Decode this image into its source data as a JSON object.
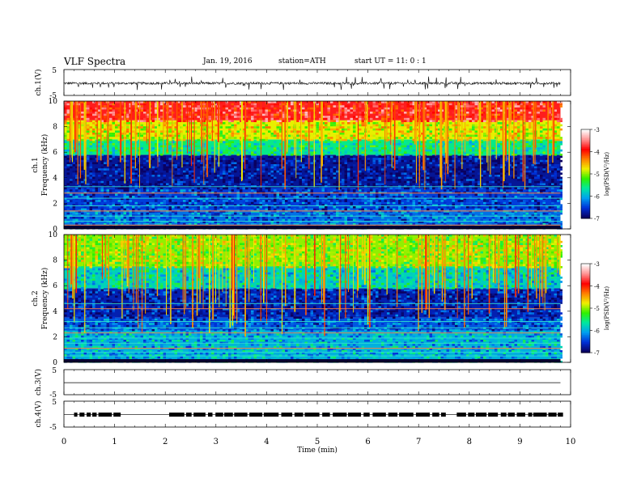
{
  "header": {
    "title": "VLF Spectra",
    "date": "Jan. 19, 2016",
    "station": "station=ATH",
    "start": "start  UT  =   11: 0  : 1"
  },
  "chart_data": [
    {
      "type": "line",
      "panel": "ch1-waveform",
      "ylabel": "ch.1(V)",
      "yticks": [
        "5",
        "-5"
      ],
      "ylim": [
        -5,
        5
      ],
      "baseline": -0.3,
      "description_of_values": "noisy trace around -0.3 V with spikes to about -2.5 V"
    },
    {
      "type": "heatmap",
      "panel": "ch1-spectrogram",
      "ylabel": "ch.1\nFrequency  (kHz)",
      "yticks": [
        "0",
        "2",
        "4",
        "6",
        "8",
        "10"
      ],
      "ylim": [
        0,
        10
      ],
      "colorbar": {
        "label": "log(PSD(V²/Hz)",
        "ticks": [
          "-3",
          "-4",
          "-5",
          "-6",
          "-7"
        ],
        "range": [
          -7,
          -3
        ]
      },
      "bands_khz": [
        {
          "from": 0,
          "to": 1.5,
          "level": -6.3
        },
        {
          "from": 1.5,
          "to": 3.2,
          "level": -6.5
        },
        {
          "from": 3.2,
          "to": 5.8,
          "level": -6.8
        },
        {
          "from": 5.8,
          "to": 7.0,
          "level": -5.6
        },
        {
          "from": 7.0,
          "to": 8.5,
          "level": -4.8
        },
        {
          "from": 8.5,
          "to": 10,
          "level": -3.8
        }
      ]
    },
    {
      "type": "heatmap",
      "panel": "ch2-spectrogram",
      "ylabel": "ch.2\nFrequency  (kHz)",
      "yticks": [
        "0",
        "2",
        "4",
        "6",
        "8",
        "10"
      ],
      "ylim": [
        0,
        10
      ],
      "colorbar": {
        "label": "log(PSD(V²/Hz)",
        "ticks": [
          "-3",
          "-4",
          "-5",
          "-6",
          "-7"
        ],
        "range": [
          -7,
          -3
        ]
      },
      "bands_khz": [
        {
          "from": 0,
          "to": 2.5,
          "level": -6.0
        },
        {
          "from": 2.5,
          "to": 3.5,
          "level": -6.4
        },
        {
          "from": 3.5,
          "to": 5.8,
          "level": -6.7
        },
        {
          "from": 5.8,
          "to": 7.5,
          "level": -5.8
        },
        {
          "from": 7.5,
          "to": 10,
          "level": -5.0
        }
      ]
    },
    {
      "type": "line",
      "panel": "ch3-waveform",
      "ylabel": "ch.3(V)",
      "yticks": [
        "5",
        "-5"
      ],
      "ylim": [
        -5,
        5
      ],
      "baseline": -0.2
    },
    {
      "type": "line",
      "panel": "ch4-waveform",
      "ylabel": "ch.4(V)",
      "yticks": [
        "5",
        "-5"
      ],
      "ylim": [
        -5,
        5
      ],
      "baseline": -0.2,
      "gaps_min": [
        [
          1.0,
          1.8
        ],
        [
          2.3,
          2.4
        ],
        [
          4.3,
          4.55
        ],
        [
          6.45,
          6.55
        ],
        [
          7.5,
          7.65
        ],
        [
          9.05,
          9.1
        ]
      ]
    }
  ],
  "x_axis": {
    "xlabel": "Time  (min)",
    "xlim": [
      0,
      10
    ],
    "data_end": 9.8,
    "ticks": [
      "0",
      "1",
      "2",
      "3",
      "4",
      "5",
      "6",
      "7",
      "8",
      "9",
      "10"
    ]
  },
  "colors": {
    "colormap": [
      "#0a0060",
      "#0030d8",
      "#00a0f0",
      "#00e8a0",
      "#30f000",
      "#f0f000",
      "#ff8000",
      "#ff0000",
      "#ff9090",
      "#ffffff"
    ]
  }
}
